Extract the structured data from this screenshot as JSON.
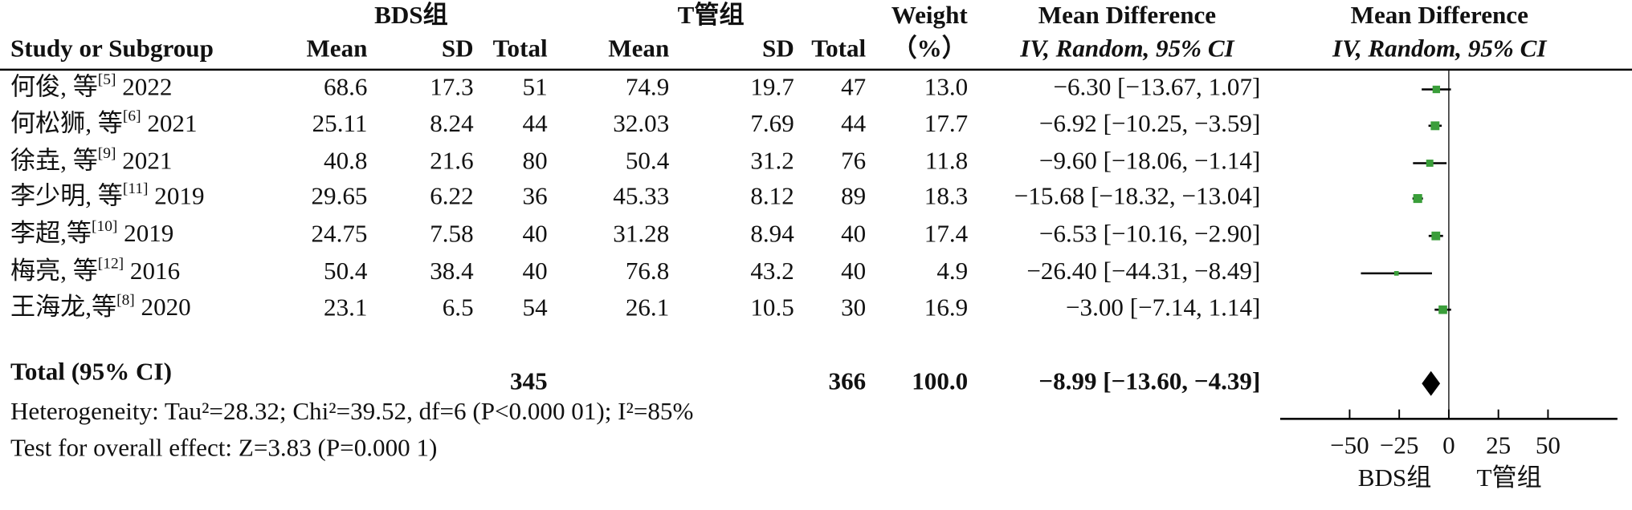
{
  "chart_data": {
    "type": "forest",
    "group_headers": [
      "BDS组",
      "T管组"
    ],
    "headers": [
      "Study or Subgroup",
      "Mean",
      "SD",
      "Total",
      "Mean",
      "SD",
      "Total"
    ],
    "weight_header": [
      "Weight",
      "（%）"
    ],
    "effect_header": [
      "Mean Difference",
      "IV, Random, 95% CI"
    ],
    "plot_header": [
      "Mean Difference",
      "IV, Random, 95% CI"
    ],
    "studies": [
      {
        "name": "何俊, 等",
        "ref": "[5]",
        "year": "2022",
        "cells": [
          "68.6",
          "17.3",
          "51",
          "74.9",
          "19.7",
          "47"
        ],
        "weight": 13.0,
        "weight_label": "13.0",
        "md": -6.3,
        "ci_low": -13.67,
        "ci_high": 1.07,
        "ci_label": "−6.30 [−13.67, 1.07]"
      },
      {
        "name": "何松狮, 等",
        "ref": "[6]",
        "year": "2021",
        "cells": [
          "25.11",
          "8.24",
          "44",
          "32.03",
          "7.69",
          "44"
        ],
        "weight": 17.7,
        "weight_label": "17.7",
        "md": -6.92,
        "ci_low": -10.25,
        "ci_high": -3.59,
        "ci_label": "−6.92 [−10.25, −3.59]"
      },
      {
        "name": "徐垚, 等",
        "ref": "[9]",
        "year": "2021",
        "cells": [
          "40.8",
          "21.6",
          "80",
          "50.4",
          "31.2",
          "76"
        ],
        "weight": 11.8,
        "weight_label": "11.8",
        "md": -9.6,
        "ci_low": -18.06,
        "ci_high": -1.14,
        "ci_label": "−9.60 [−18.06, −1.14]"
      },
      {
        "name": "李少明, 等",
        "ref": "[11]",
        "year": "2019",
        "cells": [
          "29.65",
          "6.22",
          "36",
          "45.33",
          "8.12",
          "89"
        ],
        "weight": 18.3,
        "weight_label": "18.3",
        "md": -15.68,
        "ci_low": -18.32,
        "ci_high": -13.04,
        "ci_label": "−15.68 [−18.32, −13.04]"
      },
      {
        "name": "李超,等",
        "ref": "[10]",
        "year": "2019",
        "cells": [
          "24.75",
          "7.58",
          "40",
          "31.28",
          "8.94",
          "40"
        ],
        "weight": 17.4,
        "weight_label": "17.4",
        "md": -6.53,
        "ci_low": -10.16,
        "ci_high": -2.9,
        "ci_label": "−6.53 [−10.16, −2.90]"
      },
      {
        "name": "梅亮, 等",
        "ref": "[12]",
        "year": "2016",
        "cells": [
          "50.4",
          "38.4",
          "40",
          "76.8",
          "43.2",
          "40"
        ],
        "weight": 4.9,
        "weight_label": "4.9",
        "md": -26.4,
        "ci_low": -44.31,
        "ci_high": -8.49,
        "ci_label": "−26.40 [−44.31, −8.49]"
      },
      {
        "name": "王海龙,等",
        "ref": "[8]",
        "year": "2020",
        "cells": [
          "23.1",
          "6.5",
          "54",
          "26.1",
          "10.5",
          "30"
        ],
        "weight": 16.9,
        "weight_label": "16.9",
        "md": -3.0,
        "ci_low": -7.14,
        "ci_high": 1.14,
        "ci_label": "−3.00 [−7.14, 1.14]"
      }
    ],
    "total": {
      "label": "Total (95% CI)",
      "totals": [
        "345",
        "366"
      ],
      "weight_label": "100.0",
      "md": -8.99,
      "ci_low": -13.6,
      "ci_high": -4.39,
      "ci_label": "−8.99 [−13.60, −4.39]"
    },
    "heterogeneity": "Heterogeneity: Tau²=28.32; Chi²=39.52, df=6 (P<0.000 01); I²=85%",
    "overall_effect": "Test for overall effect: Z=3.83 (P=0.000 1)",
    "xlim": [
      -85,
      85
    ],
    "xticks": [
      {
        "value": -50,
        "label": "−50"
      },
      {
        "value": -25,
        "label": "−25"
      },
      0,
      25,
      50
    ],
    "x_labels": [
      "BDS组",
      "T管组"
    ],
    "color": "#3a9e3a"
  }
}
